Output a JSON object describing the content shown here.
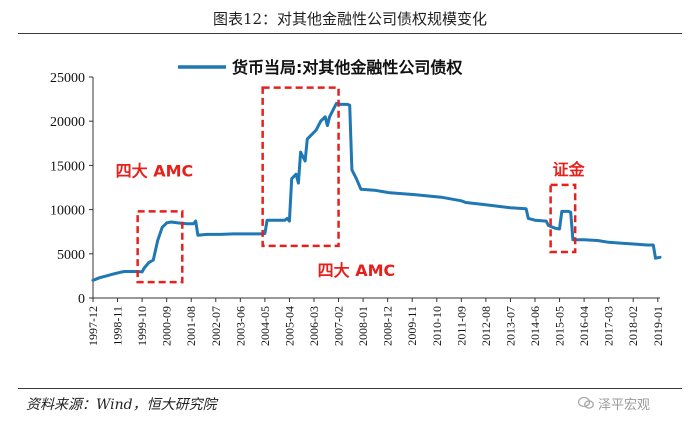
{
  "figure": {
    "title": "图表12：对其他金融性公司债权规模变化",
    "source": "资料来源：Wind，恒大研究院",
    "watermark": "泽平宏观"
  },
  "colors": {
    "line": "#1f77b4",
    "annotation": "#e8201c",
    "axis": "#333333"
  },
  "chart_data": {
    "type": "line",
    "title": "",
    "xlabel": "",
    "ylabel": "",
    "legend": {
      "position": "top",
      "entries": [
        "货币当局:对其他金融性公司债权"
      ]
    },
    "ylim": [
      0,
      25000
    ],
    "yticks": [
      0,
      5000,
      10000,
      15000,
      20000,
      25000
    ],
    "xlim": [
      "1997-12",
      "2019-02"
    ],
    "xticks": [
      "1997-12",
      "1998-11",
      "1999-10",
      "2000-09",
      "2001-08",
      "2002-07",
      "2003-06",
      "2004-05",
      "2005-04",
      "2006-03",
      "2007-02",
      "2008-01",
      "2008-12",
      "2009-11",
      "2010-10",
      "2011-09",
      "2012-08",
      "2013-07",
      "2014-06",
      "2015-05",
      "2016-04",
      "2017-03",
      "2018-02",
      "2019-01"
    ],
    "grid": false,
    "series": [
      {
        "name": "货币当局:对其他金融性公司债权",
        "color": "#1f77b4",
        "points": [
          [
            "1997-12",
            2000
          ],
          [
            "1998-03",
            2300
          ],
          [
            "1998-06",
            2500
          ],
          [
            "1998-09",
            2700
          ],
          [
            "1998-12",
            2900
          ],
          [
            "1999-02",
            3000
          ],
          [
            "1999-05",
            3000
          ],
          [
            "1999-08",
            3000
          ],
          [
            "1999-10",
            2950
          ],
          [
            "1999-11",
            3400
          ],
          [
            "2000-01",
            4000
          ],
          [
            "2000-03",
            4300
          ],
          [
            "2000-05",
            6500
          ],
          [
            "2000-07",
            8000
          ],
          [
            "2000-09",
            8500
          ],
          [
            "2000-11",
            8600
          ],
          [
            "2001-02",
            8500
          ],
          [
            "2001-06",
            8400
          ],
          [
            "2001-09",
            8400
          ],
          [
            "2001-10",
            8700
          ],
          [
            "2001-11",
            7100
          ],
          [
            "2002-03",
            7200
          ],
          [
            "2002-09",
            7200
          ],
          [
            "2003-03",
            7250
          ],
          [
            "2003-09",
            7250
          ],
          [
            "2004-03",
            7250
          ],
          [
            "2004-05",
            7300
          ],
          [
            "2004-06",
            8800
          ],
          [
            "2004-10",
            8800
          ],
          [
            "2005-02",
            8800
          ],
          [
            "2005-03",
            9000
          ],
          [
            "2005-04",
            8700
          ],
          [
            "2005-05",
            13500
          ],
          [
            "2005-07",
            14000
          ],
          [
            "2005-08",
            13000
          ],
          [
            "2005-09",
            16500
          ],
          [
            "2005-11",
            15500
          ],
          [
            "2005-12",
            18000
          ],
          [
            "2006-02",
            18500
          ],
          [
            "2006-04",
            19000
          ],
          [
            "2006-06",
            20000
          ],
          [
            "2006-08",
            20500
          ],
          [
            "2006-09",
            19500
          ],
          [
            "2006-10",
            20500
          ],
          [
            "2006-12",
            21500
          ],
          [
            "2007-01",
            22000
          ],
          [
            "2007-03",
            21900
          ],
          [
            "2007-06",
            21900
          ],
          [
            "2007-07",
            21800
          ],
          [
            "2007-08",
            14500
          ],
          [
            "2007-10",
            13500
          ],
          [
            "2007-12",
            12300
          ],
          [
            "2008-06",
            12200
          ],
          [
            "2009-01",
            11900
          ],
          [
            "2009-12",
            11700
          ],
          [
            "2010-12",
            11400
          ],
          [
            "2011-09",
            11000
          ],
          [
            "2011-11",
            10800
          ],
          [
            "2012-06",
            10600
          ],
          [
            "2013-01",
            10400
          ],
          [
            "2013-07",
            10200
          ],
          [
            "2014-02",
            10100
          ],
          [
            "2014-03",
            9000
          ],
          [
            "2014-06",
            8800
          ],
          [
            "2014-11",
            8700
          ],
          [
            "2014-12",
            8200
          ],
          [
            "2015-03",
            7900
          ],
          [
            "2015-05",
            7800
          ],
          [
            "2015-06",
            9800
          ],
          [
            "2015-09",
            9800
          ],
          [
            "2015-10",
            9700
          ],
          [
            "2015-11",
            6600
          ],
          [
            "2016-04",
            6600
          ],
          [
            "2016-10",
            6500
          ],
          [
            "2017-03",
            6300
          ],
          [
            "2017-09",
            6200
          ],
          [
            "2018-03",
            6100
          ],
          [
            "2018-08",
            6000
          ],
          [
            "2018-11",
            6000
          ],
          [
            "2018-12",
            4500
          ],
          [
            "2019-02",
            4600
          ]
        ]
      }
    ],
    "annotations": [
      {
        "label": "四大 AMC",
        "box": {
          "x": [
            "1999-08",
            "2001-04"
          ],
          "y": [
            1800,
            9800
          ]
        }
      },
      {
        "label": "四大 AMC",
        "box": {
          "x": [
            "2004-04",
            "2007-02"
          ],
          "y": [
            5900,
            23800
          ]
        }
      },
      {
        "label": "证金",
        "box": {
          "x": [
            "2015-01",
            "2015-12"
          ],
          "y": [
            5200,
            12800
          ]
        }
      }
    ]
  }
}
